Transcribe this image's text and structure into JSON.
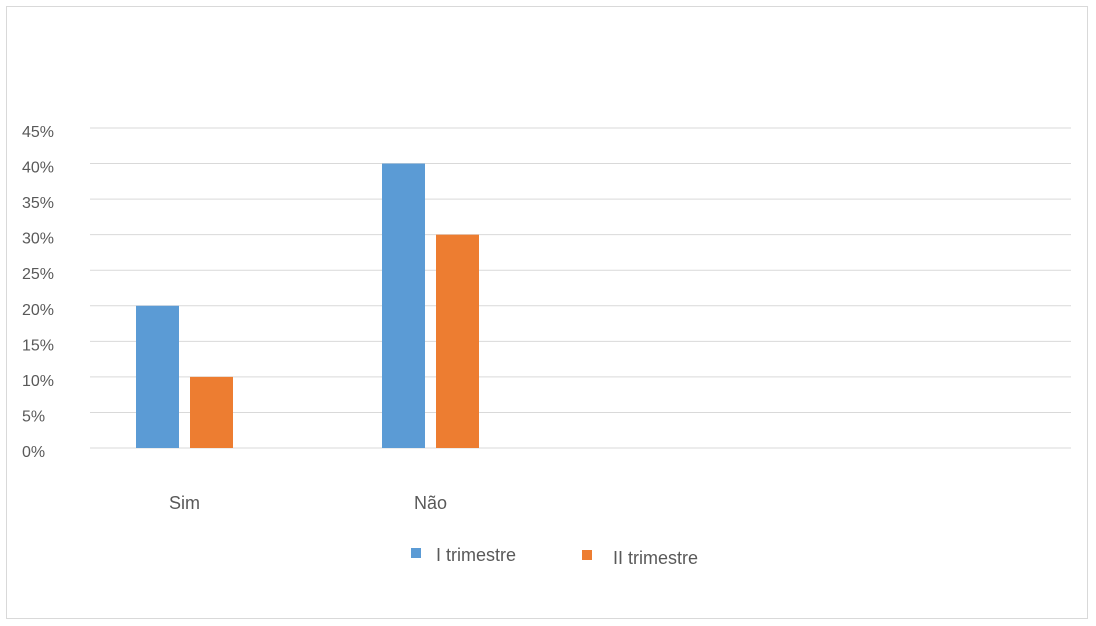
{
  "chart_data": {
    "type": "bar",
    "title": "",
    "xlabel": "",
    "ylabel": "",
    "categories": [
      "Sim",
      "Não"
    ],
    "series": [
      {
        "name": "I trimestre",
        "values": [
          20,
          40
        ],
        "color": "#5b9bd5"
      },
      {
        "name": "II trimestre",
        "values": [
          10,
          30
        ],
        "color": "#ed7d31"
      }
    ],
    "ylim": [
      0,
      45
    ],
    "yticks": [
      0,
      5,
      10,
      15,
      20,
      25,
      30,
      35,
      40,
      45
    ],
    "ytick_labels": [
      "0%",
      "5%",
      "10%",
      "15%",
      "20%",
      "25%",
      "30%",
      "35%",
      "40%",
      "45%"
    ],
    "grid": true,
    "legend_position": "bottom"
  }
}
